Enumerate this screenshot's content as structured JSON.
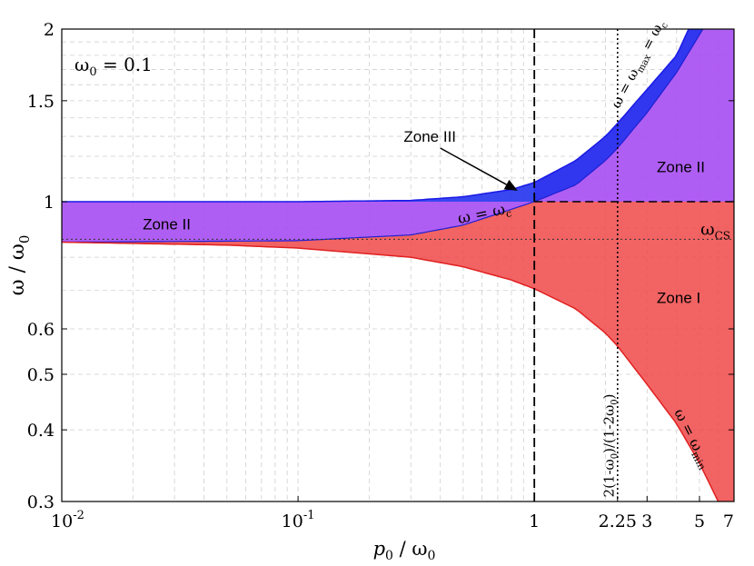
{
  "chart_data": {
    "type": "area",
    "title": "",
    "xscale": "log",
    "yscale": "log",
    "xlim": [
      0.01,
      7
    ],
    "ylim": [
      0.3,
      2
    ],
    "grid": true,
    "xlabel": {
      "base": "p",
      "base_sub": "0",
      "mid": " / ω",
      "mid_sub": "0"
    },
    "ylabel": {
      "base": "ω / ω",
      "sub": "0"
    },
    "x_ticks": [
      {
        "value": 0.01,
        "base": "10",
        "exp": "-2"
      },
      {
        "value": 0.1,
        "base": "10",
        "exp": "-1"
      },
      {
        "value": 1,
        "base": "1",
        "exp": ""
      },
      {
        "value": 2.25,
        "base": "2.25",
        "exp": ""
      },
      {
        "value": 3,
        "base": "3",
        "exp": ""
      },
      {
        "value": 5,
        "base": "5",
        "exp": ""
      },
      {
        "value": 7,
        "base": "7",
        "exp": ""
      }
    ],
    "y_ticks": [
      {
        "value": 2,
        "label": "2"
      },
      {
        "value": 1.5,
        "label": "1.5"
      },
      {
        "value": 1,
        "label": "1"
      },
      {
        "value": 0.6,
        "label": "0.6"
      },
      {
        "value": 0.5,
        "label": "0.5"
      },
      {
        "value": 0.4,
        "label": "0.4"
      },
      {
        "value": 0.3,
        "label": "0.3"
      }
    ],
    "param_annotation": "ω",
    "param_annotation_sub": "0",
    "param_annotation_value": " = 0.1",
    "curves": {
      "omega_max": {
        "label_parts": [
          "ω = ω",
          "max",
          " = ω",
          "c"
        ],
        "color": "#1a1ae6",
        "points": [
          [
            0.01,
            1.0
          ],
          [
            0.1,
            1.0
          ],
          [
            0.3,
            1.005
          ],
          [
            0.5,
            1.02
          ],
          [
            0.8,
            1.05
          ],
          [
            1,
            1.08
          ],
          [
            1.5,
            1.18
          ],
          [
            2,
            1.3
          ],
          [
            2.25,
            1.37
          ],
          [
            3,
            1.57
          ],
          [
            4,
            1.8
          ],
          [
            4.5,
            2.0
          ]
        ]
      },
      "omega_c": {
        "label_parts": [
          "ω = ω",
          "c"
        ],
        "color": "#2020d0",
        "points": [
          [
            0.01,
            0.85
          ],
          [
            0.1,
            0.855
          ],
          [
            0.3,
            0.875
          ],
          [
            0.5,
            0.91
          ],
          [
            0.8,
            0.97
          ],
          [
            1,
            1.0
          ],
          [
            1.5,
            1.07
          ],
          [
            2,
            1.18
          ],
          [
            2.25,
            1.24
          ],
          [
            3,
            1.43
          ],
          [
            4,
            1.68
          ],
          [
            4.5,
            1.82
          ]
        ]
      },
      "omega_min": {
        "label_parts": [
          "ω = ω",
          "min"
        ],
        "color": "#e02020",
        "points": [
          [
            0.01,
            0.85
          ],
          [
            0.05,
            0.84
          ],
          [
            0.1,
            0.83
          ],
          [
            0.3,
            0.8
          ],
          [
            0.5,
            0.77
          ],
          [
            0.8,
            0.73
          ],
          [
            1,
            0.705
          ],
          [
            1.5,
            0.65
          ],
          [
            2,
            0.59
          ],
          [
            2.25,
            0.56
          ],
          [
            3,
            0.48
          ],
          [
            4,
            0.41
          ],
          [
            5,
            0.35
          ],
          [
            6,
            0.3
          ]
        ]
      }
    },
    "reference_lines": {
      "x_critical": 1,
      "x_threshold": 2.25,
      "x_threshold_label": "2(1-ω",
      "x_threshold_label_sub": "0",
      "x_threshold_label_mid": ")/(1-2ω",
      "x_threshold_label_sub2": "0",
      "x_threshold_label_end": ")",
      "y_unity": 1,
      "y_omega_cs": 0.86,
      "omega_cs_label": "ω",
      "omega_cs_label_sub": "CS"
    },
    "zones": [
      {
        "label": "Zone I",
        "color": "#f03a3a",
        "x": 3.3,
        "y": 0.68
      },
      {
        "label": "Zone II",
        "color": "#a040f0",
        "x": 0.022,
        "y": 0.915
      },
      {
        "label": "Zone II",
        "color": "#a040f0",
        "x": 3.3,
        "y": 1.15
      },
      {
        "label": "Zone III",
        "color": "#1a1ae6",
        "x": 0.28,
        "y": 1.3
      }
    ],
    "zone_iii_arrow": {
      "from": [
        0.4,
        1.24
      ],
      "to": [
        0.85,
        1.045
      ]
    }
  }
}
